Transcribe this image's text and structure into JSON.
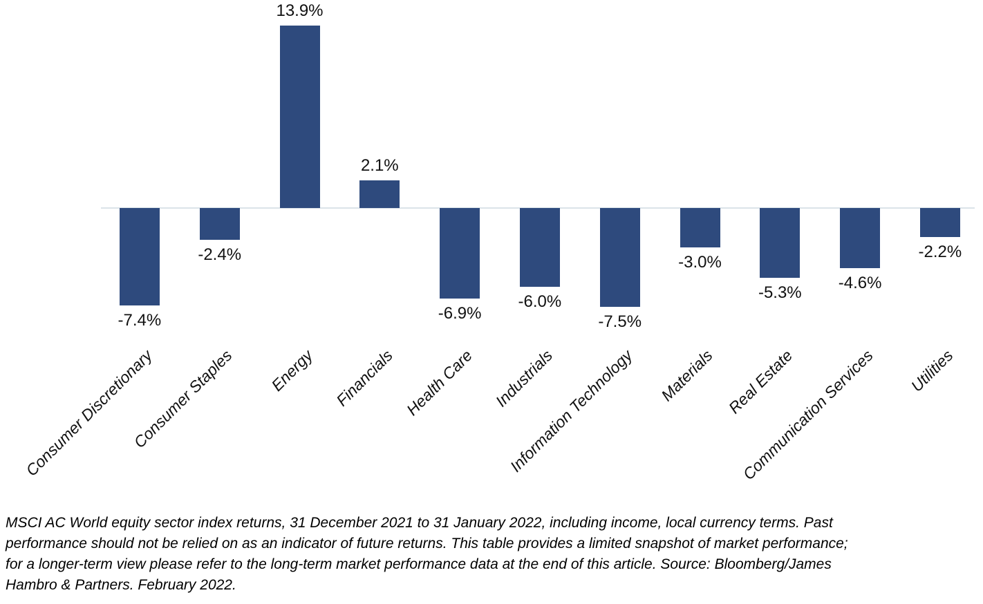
{
  "chart_data": {
    "type": "bar",
    "categories": [
      "Consumer Discretionary",
      "Consumer Staples",
      "Energy",
      "Financials",
      "Health Care",
      "Industrials",
      "Information Technology",
      "Materials",
      "Real Estate",
      "Communication Services",
      "Utilities"
    ],
    "values": [
      -7.4,
      -2.4,
      13.9,
      2.1,
      -6.9,
      -6.0,
      -7.5,
      -3.0,
      -5.3,
      -4.6,
      -2.2
    ],
    "value_labels": [
      "-7.4%",
      "-2.4%",
      "13.9%",
      "2.1%",
      "-6.9%",
      "-6.0%",
      "-7.5%",
      "-3.0%",
      "-5.3%",
      "-4.6%",
      "-2.2%"
    ],
    "title": "",
    "xlabel": "",
    "ylabel": "",
    "ylim": [
      -9,
      15
    ],
    "grid": false,
    "legend_position": "none",
    "bar_color": "#2e4a7d",
    "axis_line_color": "#dbe3e9",
    "label_color": "#111111"
  },
  "caption": {
    "lines": [
      "MSCI AC World equity sector index returns, 31 December 2021 to 31 January 2022, including income, local currency terms. Past",
      "performance should not be relied on as an indicator of future returns. This table provides a limited snapshot of market performance;",
      "for a longer-term view please refer to the long-term market performance data at the end of this article. Source: Bloomberg/James",
      "Hambro & Partners. February 2022."
    ]
  }
}
